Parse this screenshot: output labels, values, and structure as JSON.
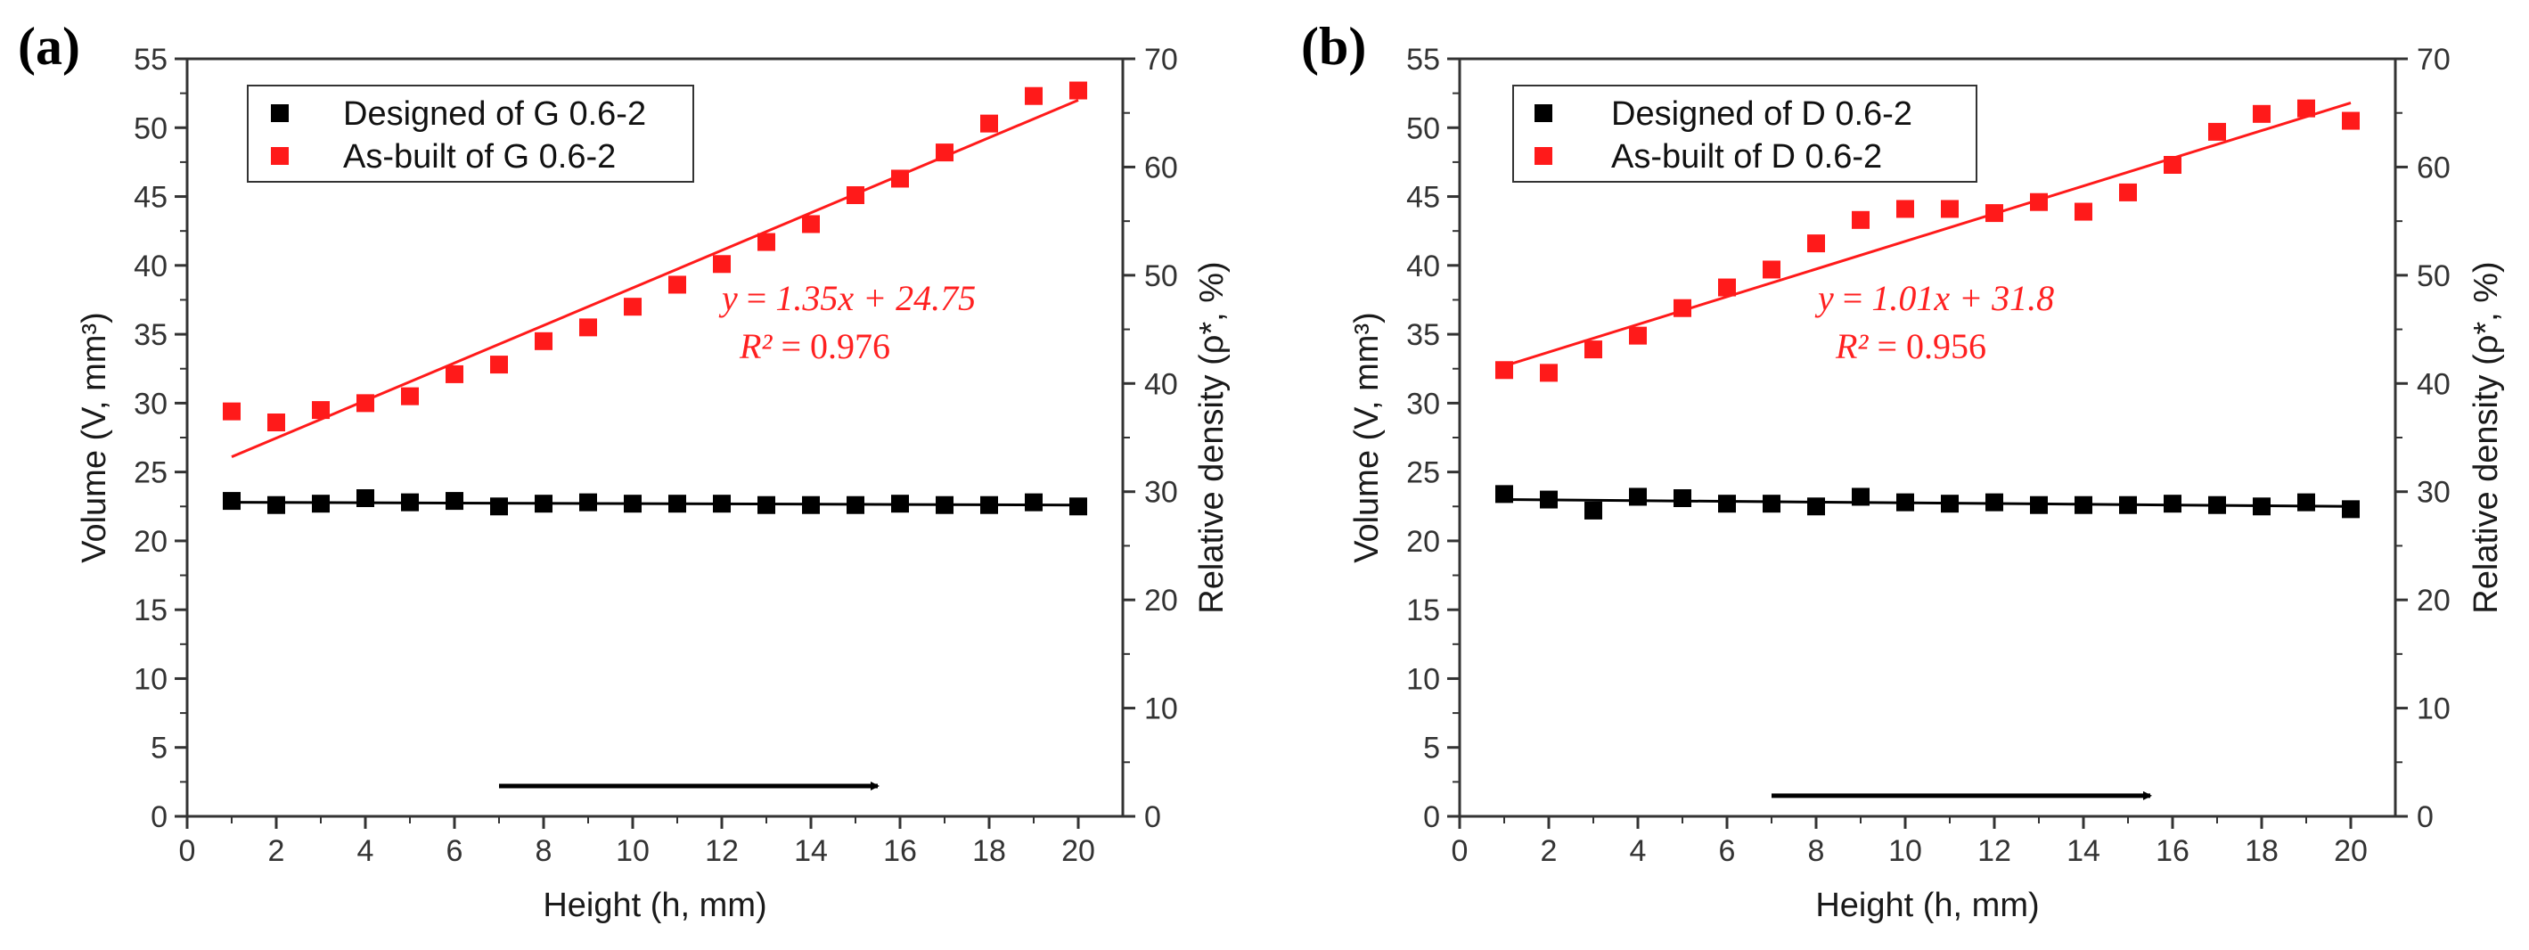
{
  "figure": {
    "panels": [
      "a",
      "b"
    ]
  },
  "chart_data": [
    {
      "type": "scatter",
      "panel_label": "(a)",
      "xlabel": "Height (h, mm)",
      "ylabel": "Volume (V, mm³)",
      "y2label": "Relative density (ρ*, %)",
      "xlim": [
        0,
        21
      ],
      "ylim": [
        0,
        55
      ],
      "y2lim": [
        0,
        70
      ],
      "xticks": [
        0,
        2,
        4,
        6,
        8,
        10,
        12,
        14,
        16,
        18,
        20
      ],
      "yticks": [
        0,
        5,
        10,
        15,
        20,
        25,
        30,
        35,
        40,
        45,
        50,
        55
      ],
      "y2ticks": [
        0,
        10,
        20,
        30,
        40,
        50,
        60,
        70
      ],
      "grid": false,
      "legend_position": "top-left",
      "series": [
        {
          "name": "Designed of G 0.6-2",
          "color": "#000000",
          "marker": "square",
          "x": [
            1,
            2,
            3,
            4,
            5,
            6,
            7,
            8,
            9,
            10,
            11,
            12,
            13,
            14,
            15,
            16,
            17,
            18,
            19,
            20
          ],
          "y": [
            22.9,
            22.6,
            22.7,
            23.1,
            22.8,
            22.9,
            22.5,
            22.7,
            22.8,
            22.7,
            22.7,
            22.7,
            22.6,
            22.6,
            22.6,
            22.7,
            22.6,
            22.6,
            22.8,
            22.5
          ],
          "fit": {
            "y_start": 22.8,
            "y_end": 22.6,
            "color": "#000000"
          }
        },
        {
          "name": "As-built  of G 0.6-2",
          "color": "#ff1a1a",
          "marker": "square",
          "x": [
            1,
            2,
            3,
            4,
            5,
            6,
            7,
            8,
            9,
            10,
            11,
            12,
            13,
            14,
            15,
            16,
            17,
            18,
            19,
            20
          ],
          "y": [
            29.4,
            28.6,
            29.5,
            30.0,
            30.5,
            32.1,
            32.8,
            34.5,
            35.5,
            37.0,
            38.6,
            40.1,
            41.7,
            43.0,
            45.1,
            46.3,
            48.2,
            50.3,
            52.3,
            52.7
          ],
          "fit": {
            "y_start": 26.1,
            "y_end": 52.0,
            "color": "#ff1a1a"
          }
        }
      ],
      "annotation": {
        "eq_left": "y",
        "eq_right": "1.35x + 24.75",
        "r2_left": "R²",
        "r2_right": "0.976"
      },
      "arrow": {
        "x_start": 7,
        "x_end": 15.5,
        "y": 2.2
      }
    },
    {
      "type": "scatter",
      "panel_label": "(b)",
      "xlabel": "Height (h, mm)",
      "ylabel": "Volume (V, mm³)",
      "y2label": "Relative density (ρ*, %)",
      "xlim": [
        0,
        21
      ],
      "ylim": [
        0,
        55
      ],
      "y2lim": [
        0,
        70
      ],
      "xticks": [
        0,
        2,
        4,
        6,
        8,
        10,
        12,
        14,
        16,
        18,
        20
      ],
      "yticks": [
        0,
        5,
        10,
        15,
        20,
        25,
        30,
        35,
        40,
        45,
        50,
        55
      ],
      "y2ticks": [
        0,
        10,
        20,
        30,
        40,
        50,
        60,
        70
      ],
      "grid": false,
      "legend_position": "top-left",
      "series": [
        {
          "name": "Designed of D 0.6-2",
          "color": "#000000",
          "marker": "square",
          "x": [
            1,
            2,
            3,
            4,
            5,
            6,
            7,
            8,
            9,
            10,
            11,
            12,
            13,
            14,
            15,
            16,
            17,
            18,
            19,
            20
          ],
          "y": [
            23.4,
            23.0,
            22.2,
            23.2,
            23.1,
            22.7,
            22.7,
            22.5,
            23.2,
            22.8,
            22.7,
            22.8,
            22.6,
            22.6,
            22.6,
            22.7,
            22.6,
            22.5,
            22.8,
            22.3
          ],
          "fit": {
            "y_start": 23.0,
            "y_end": 22.5,
            "color": "#000000"
          }
        },
        {
          "name": "As-built   of D 0.6-2",
          "color": "#ff1a1a",
          "marker": "square",
          "x": [
            1,
            2,
            3,
            4,
            5,
            6,
            7,
            8,
            9,
            10,
            11,
            12,
            13,
            14,
            15,
            16,
            17,
            18,
            19,
            20
          ],
          "y": [
            32.4,
            32.2,
            33.9,
            34.9,
            36.9,
            38.4,
            39.7,
            41.6,
            43.3,
            44.1,
            44.1,
            43.8,
            44.6,
            43.9,
            45.3,
            47.3,
            49.7,
            51.0,
            51.4,
            50.5
          ],
          "fit": {
            "y_start": 32.7,
            "y_end": 51.8,
            "color": "#ff1a1a"
          }
        }
      ],
      "annotation": {
        "eq_left": "y",
        "eq_right": "1.01x + 31.8",
        "r2_left": "R²",
        "r2_right": "0.956"
      },
      "arrow": {
        "x_start": 7,
        "x_end": 15.5,
        "y": 1.5
      }
    }
  ]
}
